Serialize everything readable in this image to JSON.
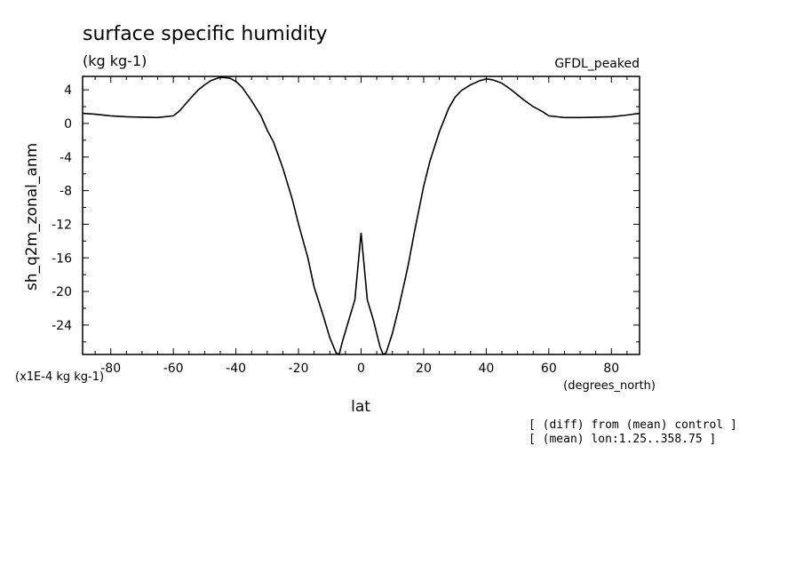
{
  "chart_data": {
    "type": "line",
    "title": "surface specific humidity",
    "units_label": "(kg kg-1)",
    "model_label": "GFDL_peaked",
    "ylabel": "sh_q2m_zonal_anm",
    "xlabel": "lat",
    "x_units_label": "(degrees_north)",
    "y_scale_label": "(x1E-4 kg kg-1)",
    "notes": [
      "[ (diff) from (mean) control ]",
      "[ (mean) lon:1.25..358.75 ]"
    ],
    "xlim": [
      -89,
      89
    ],
    "ylim": [
      -27.5,
      5.6
    ],
    "x_ticks": [
      -80,
      -60,
      -40,
      -20,
      0,
      20,
      40,
      60,
      80
    ],
    "x_tick_labels": [
      "-80",
      "-60",
      "-40",
      "-20",
      "0",
      "20",
      "40",
      "60",
      "80"
    ],
    "y_ticks": [
      4,
      0,
      -4,
      -8,
      -12,
      -16,
      -20,
      -24
    ],
    "y_tick_labels": [
      "4",
      "0",
      "-4",
      "-8",
      "-12",
      "-16",
      "-20",
      "-24"
    ],
    "grid": false,
    "series": [
      {
        "x": [
          -89,
          -85,
          -80,
          -75,
          -70,
          -65,
          -60,
          -58,
          -55,
          -52,
          -50,
          -48,
          -45,
          -42,
          -40,
          -38,
          -35,
          -32,
          -30,
          -28,
          -25,
          -22,
          -20,
          -17,
          -15,
          -12,
          -10,
          -8,
          -7,
          -6,
          -4,
          -2,
          0,
          2,
          4,
          6,
          7,
          8,
          10,
          12,
          15,
          17,
          20,
          22,
          25,
          28,
          30,
          32,
          35,
          38,
          40,
          42,
          45,
          48,
          50,
          52,
          55,
          58,
          60,
          65,
          70,
          75,
          80,
          85,
          89
        ],
        "y": [
          1.2,
          1.1,
          0.9,
          0.8,
          0.75,
          0.7,
          0.9,
          1.5,
          2.8,
          4.0,
          4.6,
          5.1,
          5.5,
          5.4,
          5.0,
          4.3,
          2.7,
          0.9,
          -0.8,
          -2.2,
          -5.3,
          -9.0,
          -12.0,
          -16.0,
          -19.5,
          -23.0,
          -25.5,
          -27.3,
          -27.5,
          -26.0,
          -23.5,
          -21.0,
          -13.0,
          -21.0,
          -23.5,
          -26.5,
          -27.5,
          -27.3,
          -25.0,
          -22.0,
          -17.0,
          -13.0,
          -7.5,
          -4.5,
          -1.0,
          1.8,
          3.1,
          3.9,
          4.6,
          5.1,
          5.3,
          5.2,
          4.8,
          4.0,
          3.4,
          2.8,
          2.0,
          1.4,
          0.9,
          0.7,
          0.7,
          0.75,
          0.8,
          1.0,
          1.2
        ]
      }
    ]
  }
}
